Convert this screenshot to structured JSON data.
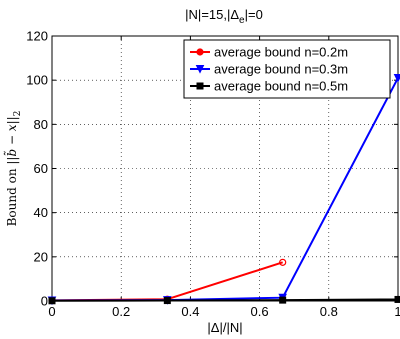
{
  "chart_data": {
    "type": "line",
    "title": "|N|=15,|Δ",
    "title_subscript": "e",
    "title_suffix": "|=0",
    "xlabel": "|Δ|/|N|",
    "ylabel_prefix": "Bound on ",
    "ylabel_math": "||b̃ − x||",
    "ylabel_subscript": "2",
    "xlim": [
      0,
      1
    ],
    "ylim": [
      0,
      120
    ],
    "x_ticks": [
      0,
      0.2,
      0.4,
      0.6,
      0.8,
      1
    ],
    "x_tick_labels": [
      "0",
      "0.2",
      "0.4",
      "0.6",
      "0.8",
      "1"
    ],
    "y_ticks": [
      0,
      20,
      40,
      60,
      80,
      100,
      120
    ],
    "y_tick_labels": [
      "0",
      "20",
      "40",
      "60",
      "80",
      "100",
      "120"
    ],
    "grid": true,
    "legend_position": "top-right",
    "series": [
      {
        "name": "average bound n=0.2m",
        "color": "#ff0000",
        "marker": "circle",
        "x": [
          0,
          0.3333,
          0.6667
        ],
        "y": [
          0.3,
          0.8,
          17.5
        ]
      },
      {
        "name": "average bound n=0.3m",
        "color": "#0000ff",
        "marker": "triangle-down",
        "x": [
          0,
          0.3333,
          0.6667,
          1
        ],
        "y": [
          0.2,
          0.4,
          1.5,
          101
        ]
      },
      {
        "name": "average bound n=0.5m",
        "color": "#000000",
        "marker": "square",
        "x": [
          0,
          0.3333,
          0.6667,
          1
        ],
        "y": [
          0.1,
          0.2,
          0.4,
          0.7
        ]
      }
    ]
  }
}
